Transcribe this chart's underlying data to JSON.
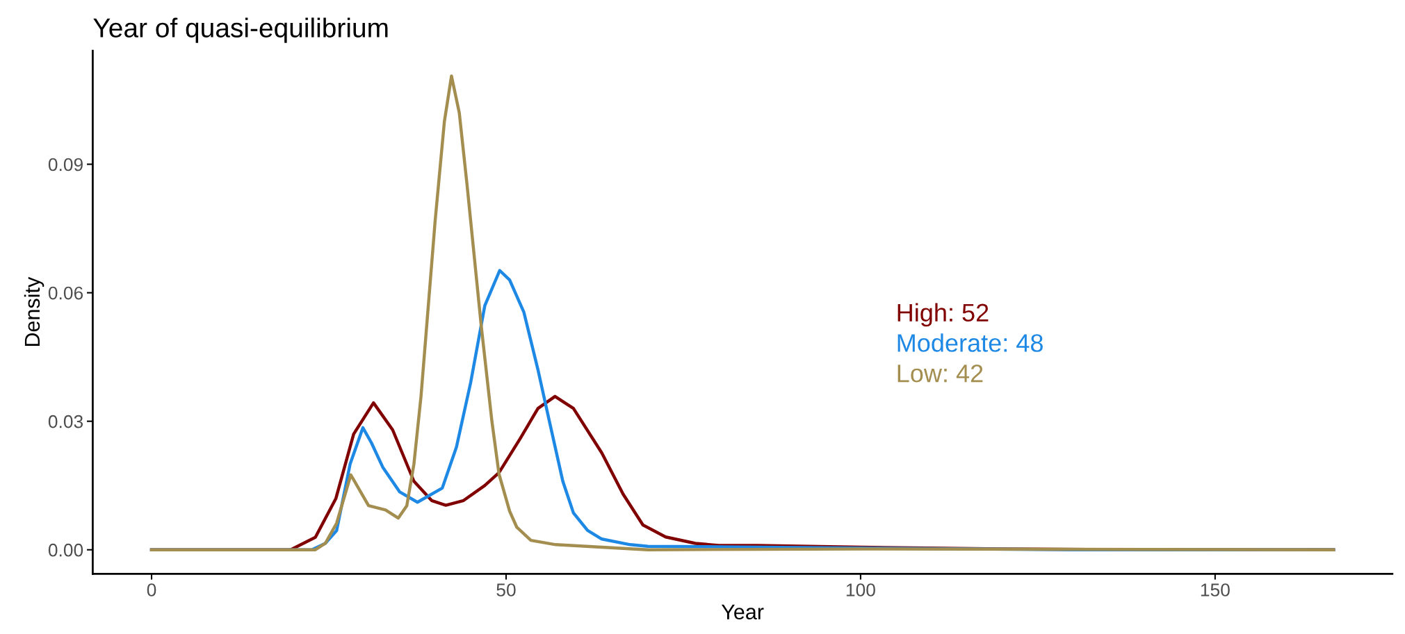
{
  "chart_data": {
    "type": "line",
    "title": "Year of quasi-equilibrium",
    "xlabel": "Year",
    "ylabel": "Density",
    "xlim": [
      -8.3,
      175
    ],
    "xticks": [
      0,
      50,
      100,
      150
    ],
    "ylim": [
      -0.0056,
      0.1165
    ],
    "yticks": [
      {
        "value": 0,
        "label": "0.00"
      },
      {
        "value": 0.03,
        "label": "0.03"
      },
      {
        "value": 0.06,
        "label": "0.06"
      },
      {
        "value": 0.09,
        "label": "0.09"
      }
    ],
    "grid": false,
    "legend": false,
    "marker": "none",
    "line_style": "solid",
    "annotations": [
      "High: 52",
      "Moderate: 48",
      "Low: 42"
    ],
    "series": [
      {
        "color": "#800000",
        "x": [
          0,
          19.6,
          23.1,
          26,
          28.5,
          31.3,
          34,
          37,
          39.5,
          41.5,
          44,
          47,
          49,
          52,
          54.5,
          56.9,
          59.5,
          63.5,
          66.5,
          69.3,
          72.5,
          76.7,
          80,
          85.5,
          100,
          120,
          140,
          166.7
        ],
        "values": [
          0,
          0,
          0.0029,
          0.012,
          0.027,
          0.0343,
          0.028,
          0.016,
          0.0115,
          0.0104,
          0.0115,
          0.015,
          0.018,
          0.026,
          0.033,
          0.0358,
          0.033,
          0.0226,
          0.013,
          0.0058,
          0.003,
          0.0015,
          0.001,
          0.001,
          0.0006,
          0.0002,
          0,
          0
        ]
      },
      {
        "color": "#1e88e5",
        "x": [
          0,
          22.6,
          24.5,
          26.1,
          28,
          29.8,
          31,
          32.6,
          35,
          37.5,
          41,
          43,
          45,
          47,
          49.1,
          50.5,
          52.5,
          54.5,
          56,
          58,
          59.5,
          61.5,
          63.5,
          67.5,
          70,
          80,
          100,
          130,
          166.7
        ],
        "values": [
          0,
          0,
          0.0015,
          0.0045,
          0.02,
          0.0285,
          0.025,
          0.0193,
          0.0135,
          0.0111,
          0.0144,
          0.024,
          0.039,
          0.057,
          0.0652,
          0.063,
          0.0555,
          0.042,
          0.0308,
          0.016,
          0.0086,
          0.0045,
          0.0025,
          0.0012,
          0.0008,
          0.0007,
          0.0004,
          0,
          0
        ]
      },
      {
        "color": "#a38e50",
        "x": [
          0,
          23.1,
          24.5,
          26.1,
          28.1,
          30.6,
          33,
          34.8,
          36,
          37,
          38,
          40,
          41.3,
          42.3,
          43.4,
          44.5,
          46.5,
          48,
          49,
          50.5,
          51.5,
          53.5,
          57,
          63.5,
          70,
          100,
          166.7
        ],
        "values": [
          0,
          0,
          0.0015,
          0.0062,
          0.0175,
          0.0103,
          0.0093,
          0.0074,
          0.0103,
          0.02,
          0.0358,
          0.0769,
          0.1,
          0.1106,
          0.102,
          0.0851,
          0.0522,
          0.03,
          0.0177,
          0.009,
          0.0053,
          0.0022,
          0.0012,
          0.0006,
          0,
          0.0002,
          0
        ]
      }
    ]
  }
}
